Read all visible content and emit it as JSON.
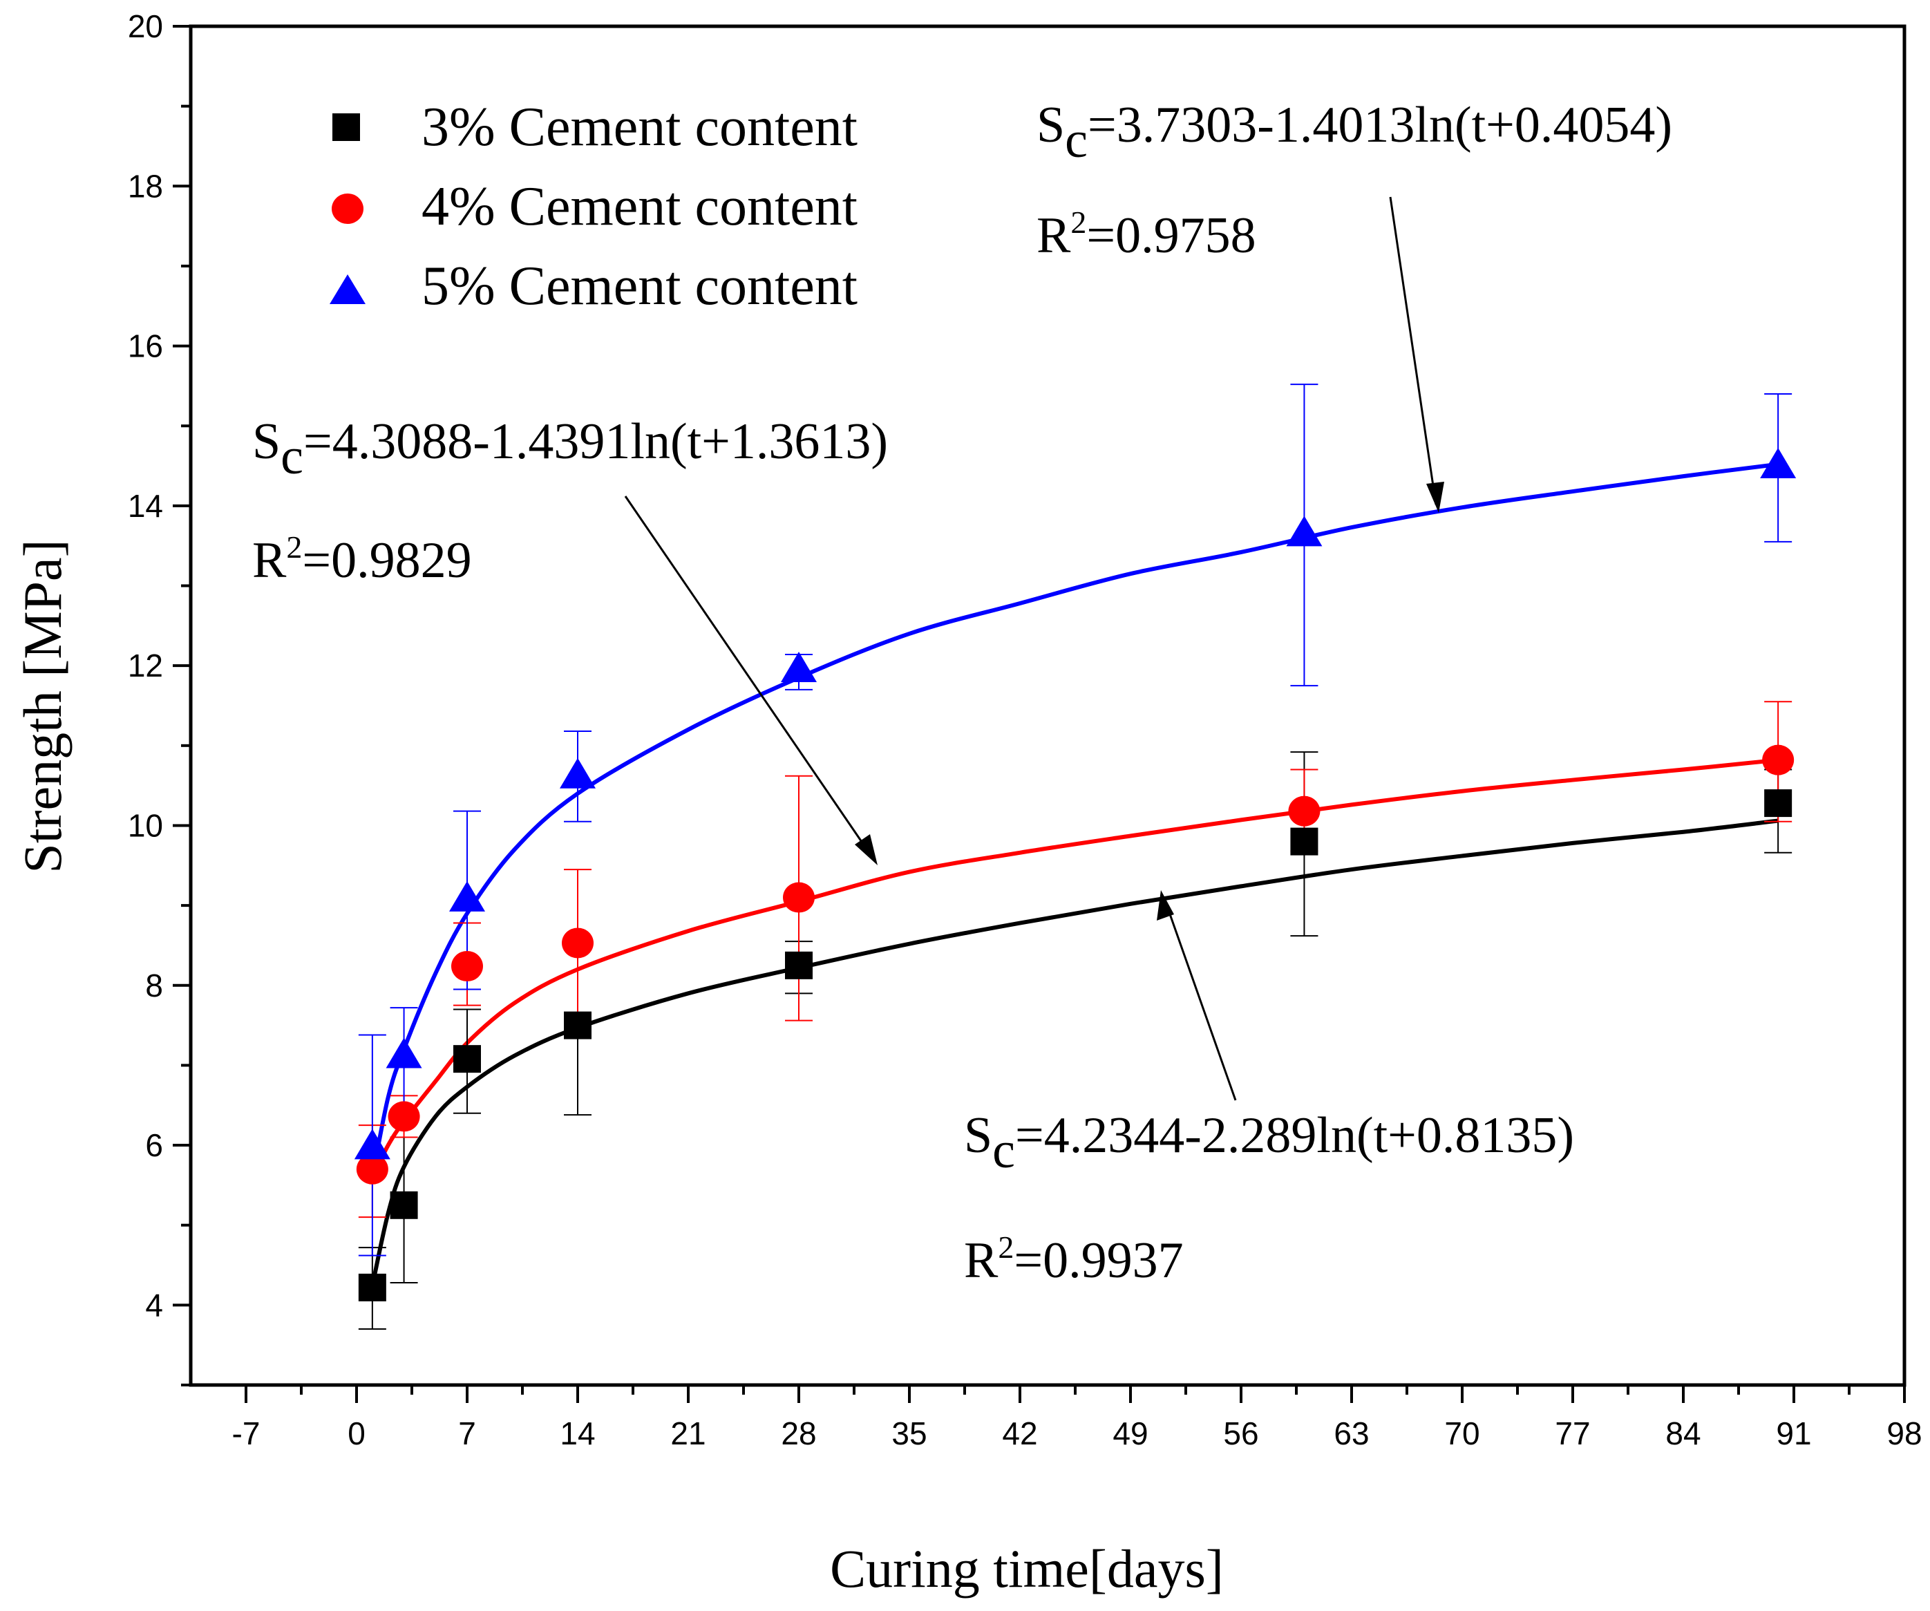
{
  "chart_data": {
    "type": "scatter",
    "xlabel": "Curing time[days]",
    "ylabel": "Strength [MPa]",
    "xlim": [
      -10.5,
      98
    ],
    "ylim": [
      3,
      20
    ],
    "x_ticks": [
      -7,
      0,
      7,
      14,
      21,
      28,
      35,
      42,
      49,
      56,
      63,
      70,
      77,
      84,
      91,
      98
    ],
    "y_ticks": [
      4,
      6,
      8,
      10,
      12,
      14,
      16,
      18,
      20
    ],
    "x_tick_labels": [
      "-7",
      "0",
      "7",
      "14",
      "21",
      "28",
      "35",
      "42",
      "49",
      "56",
      "63",
      "70",
      "77",
      "84",
      "91",
      "98"
    ],
    "y_tick_labels": [
      "4",
      "6",
      "8",
      "10",
      "12",
      "14",
      "16",
      "18",
      "20"
    ],
    "grid": false,
    "legend": "top-left",
    "series": [
      {
        "name": "3% Cement content",
        "legend_label": "3% Cement content",
        "color": "#000000",
        "marker": "square",
        "x": [
          1,
          3,
          7,
          14,
          28,
          60,
          90
        ],
        "y": [
          4.22,
          5.25,
          7.08,
          7.5,
          8.25,
          9.8,
          10.28
        ],
        "err_low": [
          3.7,
          4.28,
          6.4,
          6.38,
          7.9,
          8.62,
          9.66
        ],
        "err_high": [
          4.72,
          6.1,
          7.7,
          7.6,
          8.55,
          10.92,
          10.7
        ],
        "fit_points": [
          [
            1,
            4.24
          ],
          [
            2,
            5.15
          ],
          [
            3,
            5.73
          ],
          [
            5,
            6.36
          ],
          [
            7,
            6.73
          ],
          [
            10,
            7.12
          ],
          [
            14,
            7.47
          ],
          [
            21,
            7.9
          ],
          [
            28,
            8.22
          ],
          [
            35,
            8.52
          ],
          [
            42,
            8.78
          ],
          [
            49,
            9.02
          ],
          [
            56,
            9.24
          ],
          [
            63,
            9.45
          ],
          [
            70,
            9.62
          ],
          [
            77,
            9.78
          ],
          [
            84,
            9.92
          ],
          [
            90,
            10.06
          ]
        ],
        "equation_prefix": "S",
        "equation_sub": "c",
        "equation_rest": "=4.2344-2.289ln(t+0.8135)",
        "r2_prefix": "R",
        "r2_sup": "2",
        "r2_rest": "=0.9937"
      },
      {
        "name": "4% Cement content",
        "legend_label": "4% Cement content",
        "color": "#ff0000",
        "marker": "circle",
        "x": [
          1,
          3,
          7,
          14,
          28,
          60,
          90
        ],
        "y": [
          5.7,
          6.36,
          8.24,
          8.53,
          9.1,
          10.18,
          10.82
        ],
        "err_low": [
          5.1,
          6.1,
          7.75,
          7.6,
          7.56,
          9.68,
          10.05
        ],
        "err_high": [
          6.25,
          6.62,
          8.78,
          9.45,
          10.62,
          10.7,
          11.55
        ],
        "fit_points": [
          [
            1,
            5.6
          ],
          [
            2,
            6.0
          ],
          [
            3,
            6.3
          ],
          [
            5,
            6.8
          ],
          [
            7,
            7.28
          ],
          [
            10,
            7.78
          ],
          [
            14,
            8.2
          ],
          [
            21,
            8.68
          ],
          [
            28,
            9.05
          ],
          [
            35,
            9.42
          ],
          [
            42,
            9.66
          ],
          [
            49,
            9.87
          ],
          [
            56,
            10.07
          ],
          [
            63,
            10.26
          ],
          [
            70,
            10.43
          ],
          [
            77,
            10.57
          ],
          [
            84,
            10.7
          ],
          [
            90,
            10.82
          ]
        ],
        "equation_prefix": "S",
        "equation_sub": "c",
        "equation_rest": "=4.3088-1.4391ln(t+1.3613)",
        "r2_prefix": "R",
        "r2_sup": "2",
        "r2_rest": "=0.9829"
      },
      {
        "name": "5% Cement content",
        "legend_label": "5% Cement content",
        "color": "#0000ff",
        "marker": "triangle",
        "x": [
          1,
          3,
          7,
          14,
          28,
          60,
          90
        ],
        "y": [
          5.98,
          7.12,
          9.08,
          10.62,
          11.95,
          13.65,
          14.5
        ],
        "err_low": [
          4.62,
          6.45,
          7.95,
          10.05,
          11.7,
          11.75,
          13.55
        ],
        "err_high": [
          7.38,
          7.72,
          10.18,
          11.18,
          12.14,
          15.52,
          15.4
        ],
        "fit_points": [
          [
            1,
            5.6
          ],
          [
            2,
            6.6
          ],
          [
            3,
            7.2
          ],
          [
            5,
            8.15
          ],
          [
            7,
            8.9
          ],
          [
            10,
            9.7
          ],
          [
            14,
            10.4
          ],
          [
            21,
            11.2
          ],
          [
            28,
            11.85
          ],
          [
            35,
            12.4
          ],
          [
            42,
            12.78
          ],
          [
            49,
            13.15
          ],
          [
            56,
            13.42
          ],
          [
            63,
            13.73
          ],
          [
            70,
            13.98
          ],
          [
            77,
            14.18
          ],
          [
            84,
            14.37
          ],
          [
            90,
            14.52
          ]
        ],
        "equation_prefix": "S",
        "equation_sub": "c",
        "equation_rest": "=3.7303-1.4013ln(t+0.4054)",
        "r2_prefix": "R",
        "r2_sup": "2",
        "r2_rest": "=0.9758"
      }
    ]
  }
}
